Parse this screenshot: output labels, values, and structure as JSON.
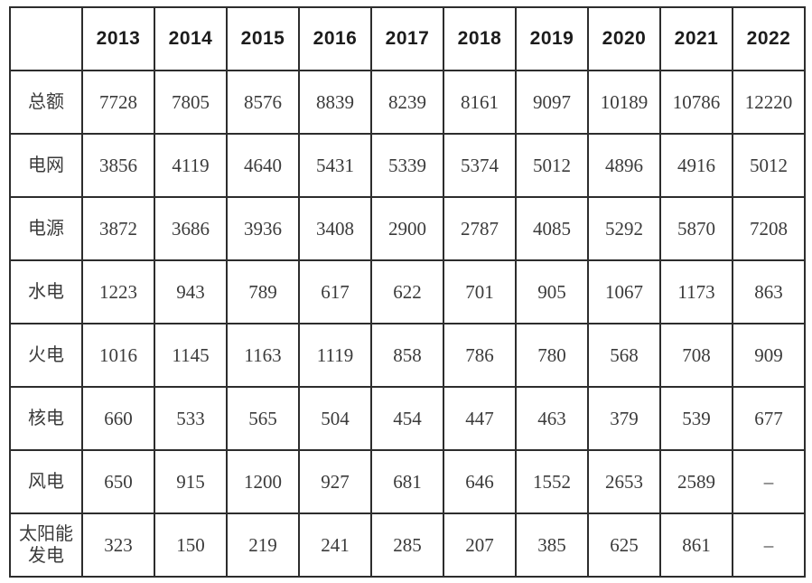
{
  "table": {
    "corner_label": "",
    "header_years": [
      "2013",
      "2014",
      "2015",
      "2016",
      "2017",
      "2018",
      "2019",
      "2020",
      "2021",
      "2022"
    ],
    "rows": [
      {
        "label": "总额",
        "values": [
          "7728",
          "7805",
          "8576",
          "8839",
          "8239",
          "8161",
          "9097",
          "10189",
          "10786",
          "12220"
        ]
      },
      {
        "label": "电网",
        "values": [
          "3856",
          "4119",
          "4640",
          "5431",
          "5339",
          "5374",
          "5012",
          "4896",
          "4916",
          "5012"
        ]
      },
      {
        "label": "电源",
        "values": [
          "3872",
          "3686",
          "3936",
          "3408",
          "2900",
          "2787",
          "4085",
          "5292",
          "5870",
          "7208"
        ]
      },
      {
        "label": "水电",
        "values": [
          "1223",
          "943",
          "789",
          "617",
          "622",
          "701",
          "905",
          "1067",
          "1173",
          "863"
        ]
      },
      {
        "label": "火电",
        "values": [
          "1016",
          "1145",
          "1163",
          "1119",
          "858",
          "786",
          "780",
          "568",
          "708",
          "909"
        ]
      },
      {
        "label": "核电",
        "values": [
          "660",
          "533",
          "565",
          "504",
          "454",
          "447",
          "463",
          "379",
          "539",
          "677"
        ]
      },
      {
        "label": "风电",
        "values": [
          "650",
          "915",
          "1200",
          "927",
          "681",
          "646",
          "1552",
          "2653",
          "2589",
          "–"
        ]
      },
      {
        "label": "太阳能发电",
        "values": [
          "323",
          "150",
          "219",
          "241",
          "285",
          "207",
          "385",
          "625",
          "861",
          "–"
        ]
      }
    ]
  },
  "colors": {
    "background": "#ffffff",
    "border": "#2d2d2d",
    "header_text": "#1c1c1c",
    "cell_text": "#3b3b3b"
  },
  "chart_data": {
    "type": "table",
    "title": "",
    "categories": [
      2013,
      2014,
      2015,
      2016,
      2017,
      2018,
      2019,
      2020,
      2021,
      2022
    ],
    "series": [
      {
        "name": "总额",
        "values": [
          7728,
          7805,
          8576,
          8839,
          8239,
          8161,
          9097,
          10189,
          10786,
          12220
        ]
      },
      {
        "name": "电网",
        "values": [
          3856,
          4119,
          4640,
          5431,
          5339,
          5374,
          5012,
          4896,
          4916,
          5012
        ]
      },
      {
        "name": "电源",
        "values": [
          3872,
          3686,
          3936,
          3408,
          2900,
          2787,
          4085,
          5292,
          5870,
          7208
        ]
      },
      {
        "name": "水电",
        "values": [
          1223,
          943,
          789,
          617,
          622,
          701,
          905,
          1067,
          1173,
          863
        ]
      },
      {
        "name": "火电",
        "values": [
          1016,
          1145,
          1163,
          1119,
          858,
          786,
          780,
          568,
          708,
          909
        ]
      },
      {
        "name": "核电",
        "values": [
          660,
          533,
          565,
          504,
          454,
          447,
          463,
          379,
          539,
          677
        ]
      },
      {
        "name": "风电",
        "values": [
          650,
          915,
          1200,
          927,
          681,
          646,
          1552,
          2653,
          2589,
          null
        ]
      },
      {
        "name": "太阳能发电",
        "values": [
          323,
          150,
          219,
          241,
          285,
          207,
          385,
          625,
          861,
          null
        ]
      }
    ],
    "missing_value_marker": "–",
    "grid": true,
    "legend_position": "none"
  }
}
